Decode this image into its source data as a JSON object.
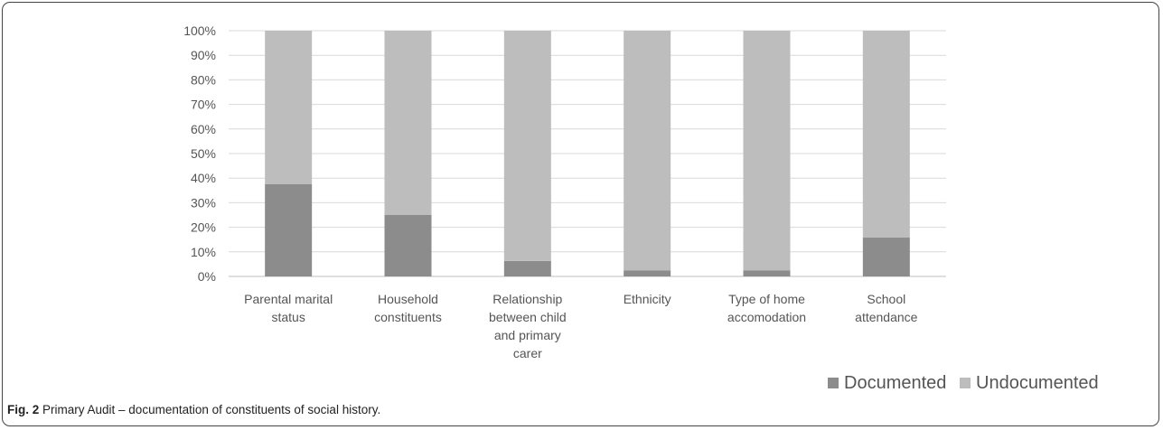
{
  "chart_data": {
    "type": "bar",
    "stacked": true,
    "percent": true,
    "title": "",
    "xlabel": "",
    "ylabel": "",
    "ylim": [
      0,
      100
    ],
    "y_ticks": [
      "0%",
      "10%",
      "20%",
      "30%",
      "40%",
      "50%",
      "60%",
      "70%",
      "80%",
      "90%",
      "100%"
    ],
    "grid": true,
    "legend_position": "bottom-right",
    "categories": [
      [
        "Parental marital",
        "status"
      ],
      [
        "Household",
        "constituents"
      ],
      [
        "Relationship",
        "between child",
        "and primary",
        "carer"
      ],
      [
        "Ethnicity"
      ],
      [
        "Type of home",
        "accomodation"
      ],
      [
        "School",
        "attendance"
      ]
    ],
    "series": [
      {
        "name": "Documented",
        "color": "#8c8c8c",
        "values": [
          37.5,
          25,
          6.3,
          2.5,
          2.5,
          15.8
        ]
      },
      {
        "name": "Undocumented",
        "color": "#bdbdbd",
        "values": [
          62.5,
          75,
          93.7,
          97.5,
          97.5,
          84.2
        ]
      }
    ]
  },
  "caption": {
    "label": "Fig. 2",
    "text": " Primary Audit – documentation of constituents of social history."
  }
}
